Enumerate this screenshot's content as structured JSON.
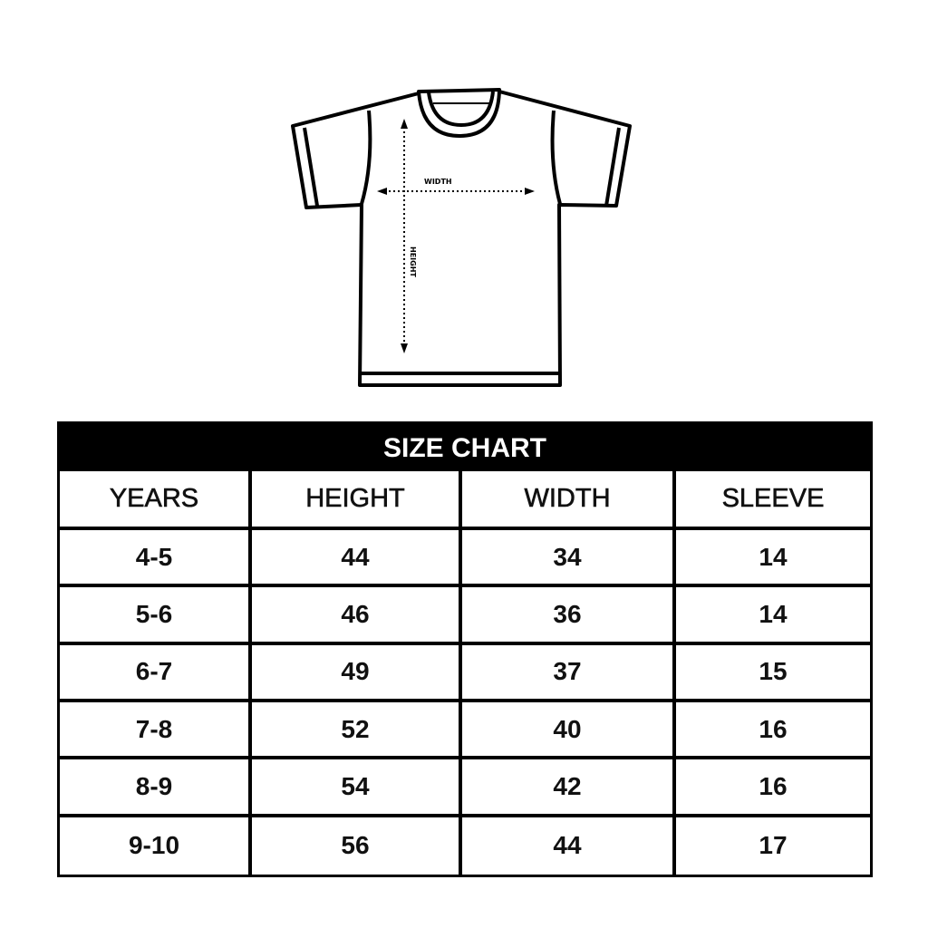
{
  "diagram": {
    "width_label": "WIDTH",
    "height_label": "HEIGHT"
  },
  "table": {
    "title": "SIZE CHART",
    "headers": [
      "YEARS",
      "HEIGHT",
      "WIDTH",
      "SLEEVE"
    ],
    "rows": [
      [
        "4-5",
        "44",
        "34",
        "14"
      ],
      [
        "5-6",
        "46",
        "36",
        "14"
      ],
      [
        "6-7",
        "49",
        "37",
        "15"
      ],
      [
        "7-8",
        "52",
        "40",
        "16"
      ],
      [
        "8-9",
        "54",
        "42",
        "16"
      ],
      [
        "9-10",
        "56",
        "44",
        "17"
      ]
    ]
  }
}
